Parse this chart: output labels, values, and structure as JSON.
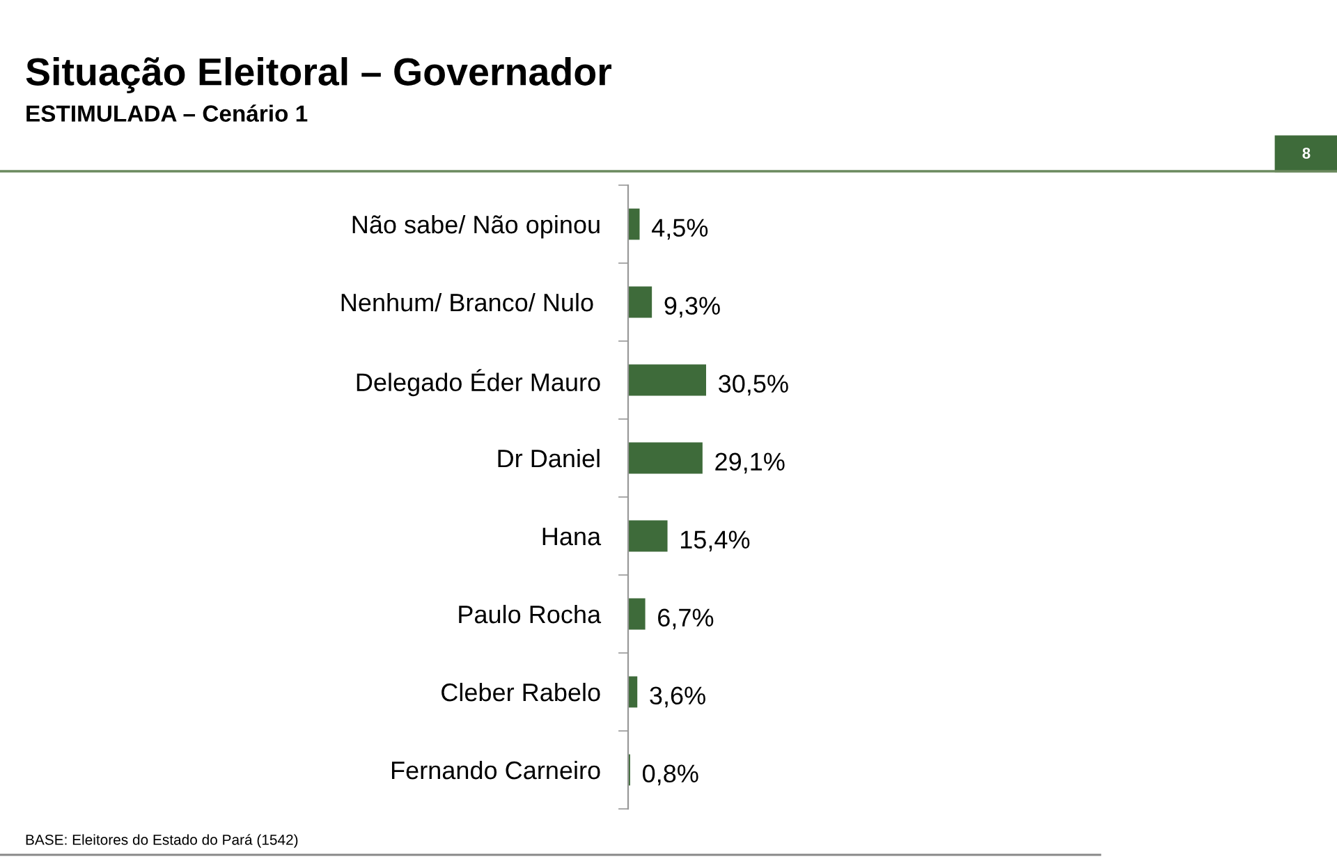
{
  "chart_data": {
    "type": "bar",
    "orientation": "horizontal",
    "title": "Situação Eleitoral – Governador",
    "subtitle": "ESTIMULADA – Cenário 1",
    "categories": [
      "Não sabe/ Não opinou",
      "Nenhum/ Branco/ Nulo ",
      "Delegado Éder Mauro",
      "Dr Daniel",
      "Hana",
      "Paulo Rocha",
      "Cleber Rabelo",
      "Fernando Carneiro"
    ],
    "values": [
      4.5,
      9.3,
      30.5,
      29.1,
      15.4,
      6.7,
      3.6,
      0.8
    ],
    "value_labels": [
      "4,5%",
      "9,3%",
      "30,5%",
      "29,1%",
      "15,4%",
      "6,7%",
      "3,6%",
      "0,8%"
    ],
    "color": "#3e6b3a",
    "annotations": [
      "8",
      "BASE: Eleitores do Estado do Pará (1542)"
    ]
  }
}
